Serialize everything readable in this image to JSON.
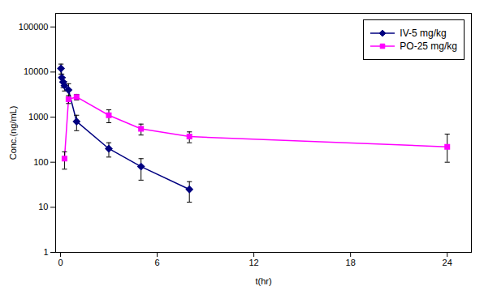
{
  "chart_data": {
    "type": "line",
    "xlabel": "t(hr)",
    "ylabel": "Conc.(ng/mL)",
    "log": "y",
    "xlim": [
      -0.3,
      25.5
    ],
    "xticks": [
      0,
      6,
      12,
      18,
      24
    ],
    "ylim": [
      1,
      200000
    ],
    "yticks": [
      1,
      10,
      100,
      1000,
      10000,
      100000
    ],
    "grid": false,
    "legend": "upper right",
    "series": [
      {
        "name": "IV-5 mg/kg",
        "color": "#000080",
        "marker": "diamond",
        "line_style": "solid",
        "x": [
          0.033,
          0.083,
          0.167,
          0.25,
          0.5,
          1.0,
          3.0,
          5.0,
          8.0
        ],
        "values": [
          12000,
          7500,
          6000,
          5000,
          4000,
          800,
          200,
          80,
          25
        ],
        "yerr_lo": [
          3000,
          1500,
          1500,
          1200,
          1500,
          300,
          70,
          40,
          12
        ],
        "yerr_hi": [
          3000,
          1500,
          1500,
          1200,
          1500,
          300,
          70,
          40,
          12
        ]
      },
      {
        "name": "PO-25 mg/kg",
        "color": "#FF00FF",
        "marker": "square",
        "line_style": "solid",
        "x": [
          0.25,
          0.5,
          1.0,
          3.0,
          5.0,
          8.0,
          24.0
        ],
        "values": [
          120,
          2500,
          2800,
          1100,
          550,
          370,
          220
        ],
        "yerr_lo": [
          50,
          500,
          400,
          350,
          150,
          100,
          120
        ],
        "yerr_hi": [
          50,
          500,
          400,
          350,
          150,
          100,
          200
        ]
      }
    ]
  }
}
